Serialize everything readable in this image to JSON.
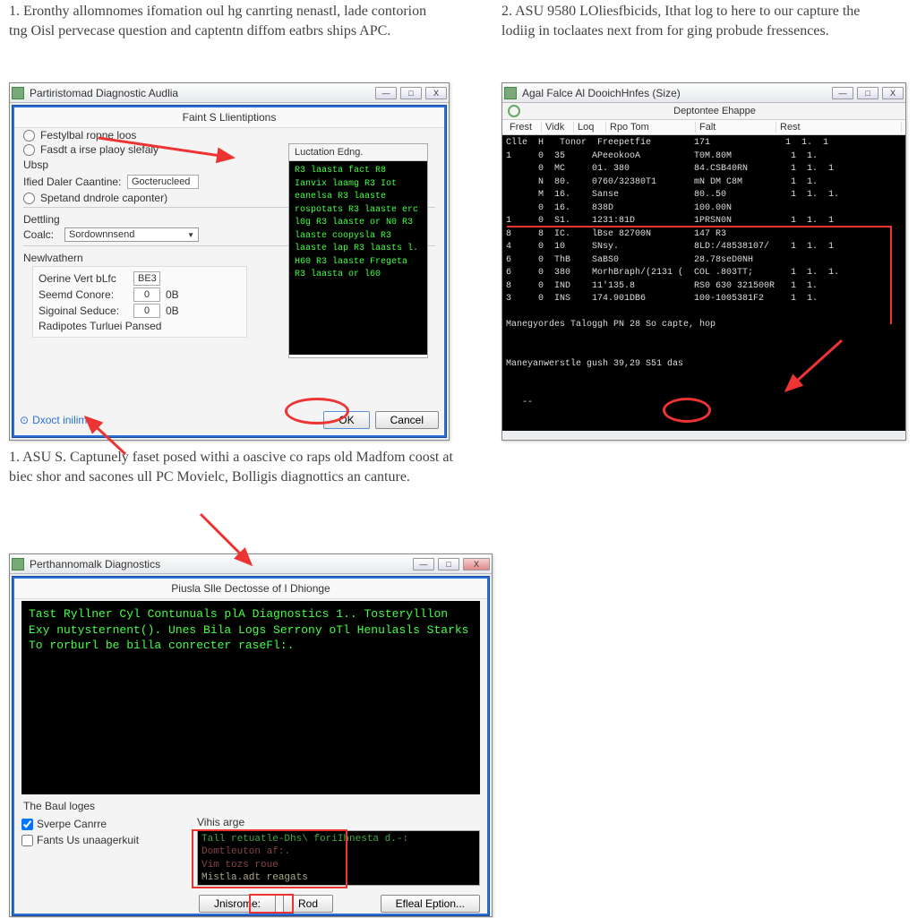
{
  "steps": {
    "s1": "1. Eronthy allomnomes ifomation oul hg canrting nenastl, lade contorion tng Oisl pervecase question and captentn diffom eatbrs ships APC.",
    "s2": "2. ASU 9580 LOliesfbicids, Ithat log to here to our capture the lodiig in toclaates next from for ging probude fressences.",
    "s3": "1. ASU S. Captunely faset posed withi a oascive co raps old Madfom coost at biec shor and sacones ull PC Movielc, Bolligis diagnottics an canture."
  },
  "win1": {
    "title": "Partiristomad Diagnostic Audlia",
    "group": "Faint S Llientiptions",
    "r1": "Festylbal ropne loos",
    "r2": "Fasdt a irse plaoy slefaly",
    "ubsp": "Ubsp",
    "filedaler": "Ified Daler Caantine:",
    "filedaler_v": "Gocterucleed",
    "r3": "Spetand dndrole caponter)",
    "detling": "Dettling",
    "coalc": "Coalc:",
    "coalc_v": "Sordownnsend",
    "newv": "Newlvathern",
    "oerine": "Oerine Vert bLfc",
    "oerine_v": "BE3",
    "seemd": "Seemd Conore:",
    "seemd_v": "0",
    "seemd_u": "0B",
    "sigoinal": "Sigoinal Seduce:",
    "sigoinal_v": "0",
    "sigoinal_u": "0B",
    "radipotes": "Radipotes Turluei Pansed",
    "help": "Dxoct inilime",
    "ok": "OK",
    "cancel": "Cancel",
    "popup_title": "Luctation Edng.",
    "popup_lines": [
      "R3  laasta fact",
      "R8  Ianvix laamg",
      "R3  Iot",
      "    eanelsa",
      "R3  laaste rospotats",
      "R3  laaste erc l0g",
      "R3  laaste or N0",
      "R3  laaste coopysla",
      "R3  laaste lap",
      "R3  laasts l.  H60",
      "R3  laaste Fregeta",
      "R3  laasta or  l60"
    ]
  },
  "win2": {
    "title": "Agal Falce Al DooichHnfes (Size)",
    "tb_label": "Deptontee Ehappe",
    "cols": [
      "Frest",
      "Vidk",
      "Loq",
      "Rpo Tom",
      "Falt",
      "Rest"
    ],
    "rows": [
      "Clle  H   Tonor  Freepetfie        171              1  1.  1",
      "1     0  35     APeeokooA          T0M.80M           1  1.",
      "      0  MC     01. 380            84.CSB40RN        1  1.  1",
      "      N  80.    0760/32380T1       mN DM C8M         1  1.",
      "      M  16.    Sanse              80..50            1  1.  1.",
      "      0  16.    838D               100.00N",
      "1     0  S1.    1231:81D           1PRSN0N           1  1.  1",
      "8     8  IC.    lBse 82700N        147 R3",
      "4     0  10     SNsy.              8LD:/48538107/    1  1.  1",
      "6     0  ThB    SaBS0              28.78seD0NH",
      "6     0  380    MorhBraph/(2131 (  COL .803TT;       1  1.  1.",
      "8     0  IND    11'135.8           RS0 630 321500R   1  1.",
      "3     0  INS    174.901DB6         100-1005381F2     1  1.",
      "",
      "Manegyordes Taloggh PN 28 So capte, hop",
      "",
      "",
      "Maneyanwerstle gush 39,29 S51 das",
      "",
      "",
      "   --"
    ]
  },
  "win3": {
    "title": "Perthannomalk Diagnostics",
    "group": "Piusla Slle Dectosse of I Dhionge",
    "term_lines": [
      "Tast Ryllner Cyl Contunuals plA Diagnostics 1..",
      "Tosterylllon Exy nutysternent().",
      "Unes Bila Logs Serrony oTl Henulasls Starks To rorburl",
      "be billa conrecter raseFl:."
    ],
    "footer_lbl": "The Baul loges",
    "chk1": "Sverpe Canrre",
    "chk2": "Fants Us unaagerkuit",
    "mid_hdr": "Vihis arge",
    "log_lines": [
      "Tall retuatle-Dhs\\  foriIhnesta d.-:",
      "Domtleuton af:.",
      "Vim tozs roue",
      "Mistla.adt reagats"
    ],
    "btn_inis": "Jnisrome:",
    "btn_fud": "Rod",
    "btn_efeal": "Efleal Eption..."
  },
  "colors": {
    "annot": "#e33"
  }
}
